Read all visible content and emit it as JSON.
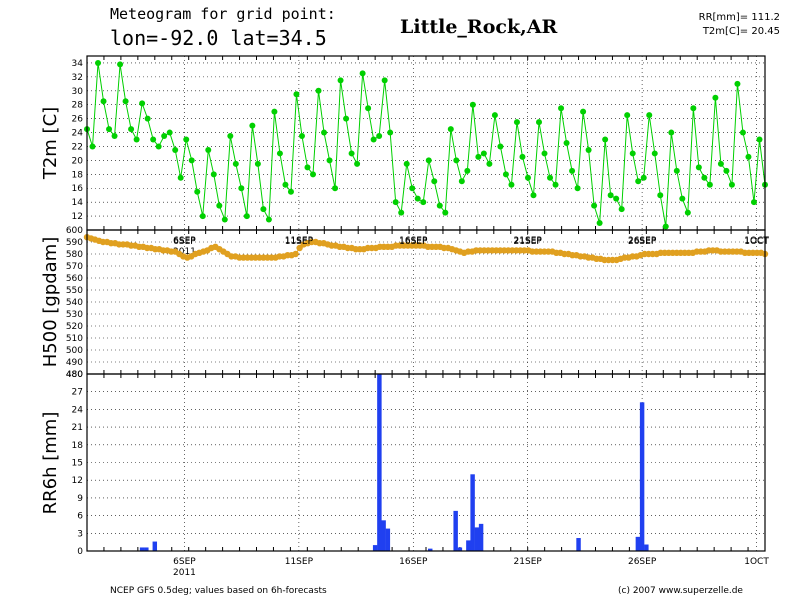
{
  "header": {
    "title_line1": "Meteogram for grid point:",
    "title_line2": "lon=-92.0 lat=34.5",
    "station": "Little_Rock,AR",
    "stat_rr": "RR[mm]= 111.2",
    "stat_t2m": "T2m[C]= 20.45"
  },
  "footer": {
    "source": "NCEP GFS 0.5deg; values based on 6h-forecasts",
    "credit": "(c) 2007 www.superzelle.de"
  },
  "colors": {
    "temperature": "#00d000",
    "geopotential": "#e0a020",
    "precipitation": "#2040f0",
    "grid": "#000000"
  },
  "chart_data": [
    {
      "type": "line",
      "ylabel": "T2m [C]",
      "ylim": [
        10,
        35
      ],
      "yticks": [
        12,
        14,
        16,
        18,
        20,
        22,
        24,
        26,
        28,
        30,
        32,
        34
      ],
      "xlim": [
        0,
        160
      ],
      "date_ticks": [
        {
          "label": "6SEP",
          "index": 23
        },
        {
          "label": "11SEP",
          "index": 50
        },
        {
          "label": "16SEP",
          "index": 77
        },
        {
          "label": "21SEP",
          "index": 104
        },
        {
          "label": "26SEP",
          "index": 131
        },
        {
          "label": "1OCT",
          "index": 158
        }
      ],
      "year_label": "2011",
      "grid": true,
      "marker": "circle",
      "series": [
        {
          "values": [
            24.5,
            22,
            34,
            28.5,
            24.5,
            23.5,
            33.8,
            28.5,
            24.5,
            23,
            28.2,
            26,
            23,
            22,
            23.5,
            24,
            21.5,
            17.5,
            23,
            20,
            15.5,
            12,
            21.5,
            18,
            13.5,
            11.5,
            23.5,
            19.5,
            16,
            12,
            25,
            19.5,
            13,
            11.5,
            27,
            21,
            16.5,
            15.5,
            29.5,
            23.5,
            19,
            18,
            30,
            24,
            20,
            16,
            31.5,
            26,
            21,
            19.5,
            32.5,
            27.5,
            23,
            23.5,
            31.5,
            24,
            14,
            12.5,
            19.5,
            16,
            14.5,
            14,
            20,
            17,
            13.5,
            12.5,
            24.5,
            20,
            17,
            18.5,
            28,
            20.5,
            21,
            19.5,
            26.5,
            22,
            18,
            16.5,
            25.5,
            20.5,
            17.5,
            15,
            25.5,
            21,
            17.5,
            16.5,
            27.5,
            22.5,
            18.5,
            16,
            27,
            21.5,
            13.5,
            11,
            23,
            15,
            14.5,
            13,
            26.5,
            21,
            17,
            17.5,
            26.5,
            21,
            15,
            10.5,
            24,
            18.5,
            14.5,
            12.5,
            27.5,
            19,
            17.5,
            16.5,
            29,
            19.5,
            18.5,
            16.5,
            31,
            24,
            20.5,
            14,
            23,
            16.5
          ]
        }
      ]
    },
    {
      "type": "line",
      "ylabel": "H500 [gpdam]",
      "ylim": [
        480,
        600
      ],
      "yticks": [
        480,
        490,
        500,
        510,
        520,
        530,
        540,
        550,
        560,
        570,
        580,
        590,
        600
      ],
      "xlim": [
        0,
        160
      ],
      "grid": true,
      "marker": "circle",
      "series": [
        {
          "values": [
            594,
            593,
            592,
            591,
            590,
            590,
            589,
            589,
            588,
            588,
            588,
            587,
            587,
            586,
            586,
            585,
            585,
            584,
            584,
            583,
            583,
            582,
            582,
            580,
            578,
            577,
            578,
            580,
            581,
            582,
            583,
            585,
            586,
            584,
            582,
            580,
            578,
            578,
            577,
            577,
            577,
            577,
            577,
            577,
            577,
            577,
            577,
            577,
            578,
            578,
            579,
            579,
            580,
            585,
            588,
            589,
            590,
            590,
            589,
            589,
            588,
            587,
            587,
            586,
            586,
            585,
            585,
            584,
            584,
            584,
            585,
            585,
            585,
            586,
            586,
            586,
            586,
            587,
            587,
            587,
            587,
            587,
            587,
            587,
            587,
            586,
            586,
            586,
            586,
            585,
            585,
            584,
            583,
            582,
            581,
            582,
            582,
            583,
            583,
            583,
            583,
            583,
            583,
            583,
            583,
            583,
            583,
            583,
            583,
            583,
            583,
            582,
            582,
            582,
            582,
            582,
            582,
            581,
            581,
            580,
            580,
            579,
            579,
            578,
            578,
            577,
            577,
            576,
            576,
            575,
            575,
            575,
            575,
            576,
            577,
            577,
            578,
            578,
            579,
            580,
            580,
            580,
            580,
            581,
            581,
            581,
            581,
            581,
            581,
            581,
            581,
            581,
            582,
            582,
            582,
            583,
            583,
            583,
            582,
            582,
            582,
            582,
            582,
            582,
            581,
            581,
            581,
            581,
            581,
            580
          ]
        }
      ]
    },
    {
      "type": "bar",
      "ylabel": "RR6h [mm]",
      "ylim": [
        0,
        30
      ],
      "yticks": [
        0,
        3,
        6,
        9,
        12,
        15,
        18,
        21,
        24,
        27
      ],
      "top_tick_label": "480",
      "xlim": [
        0,
        160
      ],
      "date_ticks": [
        {
          "label": "6SEP",
          "index": 23
        },
        {
          "label": "11SEP",
          "index": 50
        },
        {
          "label": "16SEP",
          "index": 77
        },
        {
          "label": "21SEP",
          "index": 104
        },
        {
          "label": "26SEP",
          "index": 131
        },
        {
          "label": "1OCT",
          "index": 158
        }
      ],
      "year_label": "2011",
      "grid": true,
      "series": [
        {
          "values": [
            0,
            0,
            0,
            0,
            0,
            0,
            0,
            0,
            0,
            0,
            0,
            0,
            0,
            0,
            0,
            0,
            0,
            0,
            0,
            0,
            0,
            0,
            0,
            0,
            0,
            0,
            0,
            0,
            0,
            0,
            0,
            0,
            0,
            0,
            0,
            0,
            0,
            0,
            0,
            0,
            0,
            0,
            0,
            0,
            0,
            0,
            0,
            0,
            0,
            0,
            0,
            0,
            0,
            0,
            0,
            0,
            0,
            0,
            0,
            0,
            0,
            0,
            0.5,
            0.5,
            1.5,
            0,
            0,
            0,
            0,
            0,
            0,
            0,
            0,
            0,
            0,
            0,
            0,
            0,
            0,
            0,
            0,
            0,
            0,
            0,
            0,
            0,
            0,
            0,
            0,
            0,
            0,
            0,
            0,
            0,
            0,
            0,
            0,
            0,
            0,
            0,
            0,
            0,
            0,
            0,
            0,
            0,
            0,
            0,
            0,
            0,
            0,
            0,
            0,
            0,
            0,
            0,
            0,
            0,
            0,
            0,
            0,
            0,
            0,
            0,
            0,
            0,
            0,
            0,
            0,
            0,
            0,
            0,
            0,
            0,
            0,
            0,
            0,
            0,
            0,
            0,
            0,
            0,
            0,
            0,
            0,
            0,
            0,
            0,
            0,
            0,
            0,
            0,
            0,
            0,
            0,
            0,
            0,
            0,
            0,
            0,
            0,
            0,
            0,
            0,
            0,
            0
          ]
        }
      ],
      "bars": [
        {
          "index": 13,
          "value": 0.6
        },
        {
          "index": 14,
          "value": 0.6
        },
        {
          "index": 16,
          "value": 1.6
        },
        {
          "index": 68,
          "value": 1.0
        },
        {
          "index": 69,
          "value": 30
        },
        {
          "index": 70,
          "value": 5.2
        },
        {
          "index": 71,
          "value": 3.8
        },
        {
          "index": 81,
          "value": 0.4
        },
        {
          "index": 87,
          "value": 6.8
        },
        {
          "index": 88,
          "value": 0.6
        },
        {
          "index": 90,
          "value": 1.8
        },
        {
          "index": 91,
          "value": 13
        },
        {
          "index": 92,
          "value": 4.0
        },
        {
          "index": 93,
          "value": 4.6
        },
        {
          "index": 116,
          "value": 2.2
        },
        {
          "index": 130,
          "value": 2.4
        },
        {
          "index": 131,
          "value": 25.2
        },
        {
          "index": 132,
          "value": 1.1
        }
      ]
    }
  ]
}
